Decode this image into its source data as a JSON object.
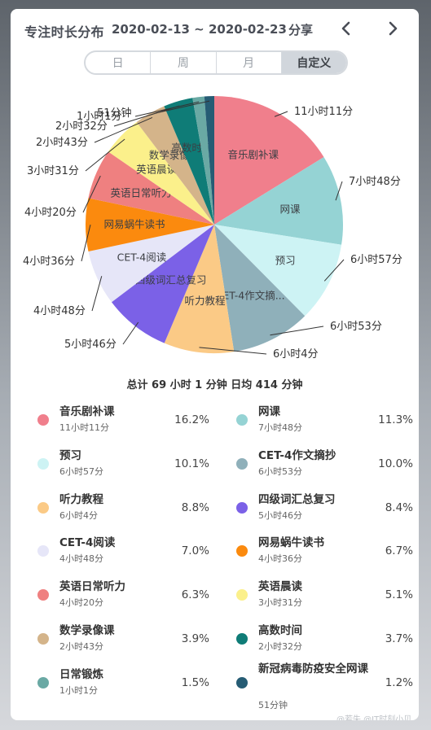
{
  "header": {
    "title": "专注时长分布",
    "range": "2020-02-13 ~ 2020-02-23",
    "share": "分享"
  },
  "tabs": [
    {
      "label": "日",
      "active": false
    },
    {
      "label": "周",
      "active": false
    },
    {
      "label": "月",
      "active": false
    },
    {
      "label": "自定义",
      "active": true
    }
  ],
  "summary": "总计 69 小时 1 分钟 日均 414 分钟",
  "watermark": "@若失 @IT时刻小贝日",
  "chart_data": {
    "type": "pie",
    "slices": [
      {
        "name": "音乐剧补课",
        "duration": "11小时11分",
        "value": 671,
        "percent": "16.2%",
        "color": "#f07f8c",
        "inside_label": "音乐剧补课"
      },
      {
        "name": "网课",
        "duration": "7小时48分",
        "value": 468,
        "percent": "11.3%",
        "color": "#95d3d4",
        "inside_label": "网课"
      },
      {
        "name": "预习",
        "duration": "6小时57分",
        "value": 417,
        "percent": "10.1%",
        "color": "#cdf3f4",
        "inside_label": "预习"
      },
      {
        "name": "CET-4作文摘抄",
        "duration": "6小时53分",
        "value": 413,
        "percent": "10.0%",
        "color": "#8fb0ba",
        "inside_label": "CET-4作文摘..."
      },
      {
        "name": "听力教程",
        "duration": "6小时4分",
        "value": 364,
        "percent": "8.8%",
        "color": "#fbca86",
        "inside_label": "听力教程"
      },
      {
        "name": "四级词汇总复习",
        "duration": "5小时46分",
        "value": 346,
        "percent": "8.4%",
        "color": "#7b61e7",
        "inside_label": "四级词汇总复习"
      },
      {
        "name": "CET-4阅读",
        "duration": "4小时48分",
        "value": 288,
        "percent": "7.0%",
        "color": "#e6e6f8",
        "inside_label": "CET-4阅读"
      },
      {
        "name": "网易蜗牛读书",
        "duration": "4小时36分",
        "value": 276,
        "percent": "6.7%",
        "color": "#fb8a0e",
        "inside_label": "网易蜗牛读书"
      },
      {
        "name": "英语日常听力",
        "duration": "4小时20分",
        "value": 260,
        "percent": "6.3%",
        "color": "#ef8080",
        "inside_label": "英语日常听力"
      },
      {
        "name": "英语晨读",
        "duration": "3小时31分",
        "value": 211,
        "percent": "5.1%",
        "color": "#fbf08b",
        "inside_label": "英语晨读"
      },
      {
        "name": "数学录像课",
        "duration": "2小时43分",
        "value": 163,
        "percent": "3.9%",
        "color": "#d4b48a",
        "inside_label": "数学录像课"
      },
      {
        "name": "高数时间",
        "duration": "2小时32分",
        "value": 152,
        "percent": "3.7%",
        "color": "#0f7c77",
        "inside_label": "高数时间"
      },
      {
        "name": "日常锻炼",
        "duration": "1小时1分",
        "value": 61,
        "percent": "1.5%",
        "color": "#6aa9a4",
        "inside_label": ""
      },
      {
        "name": "新冠病毒防疫安全网课",
        "duration": "51分钟",
        "value": 51,
        "percent": "1.2%",
        "color": "#265c74",
        "inside_label": ""
      }
    ]
  }
}
